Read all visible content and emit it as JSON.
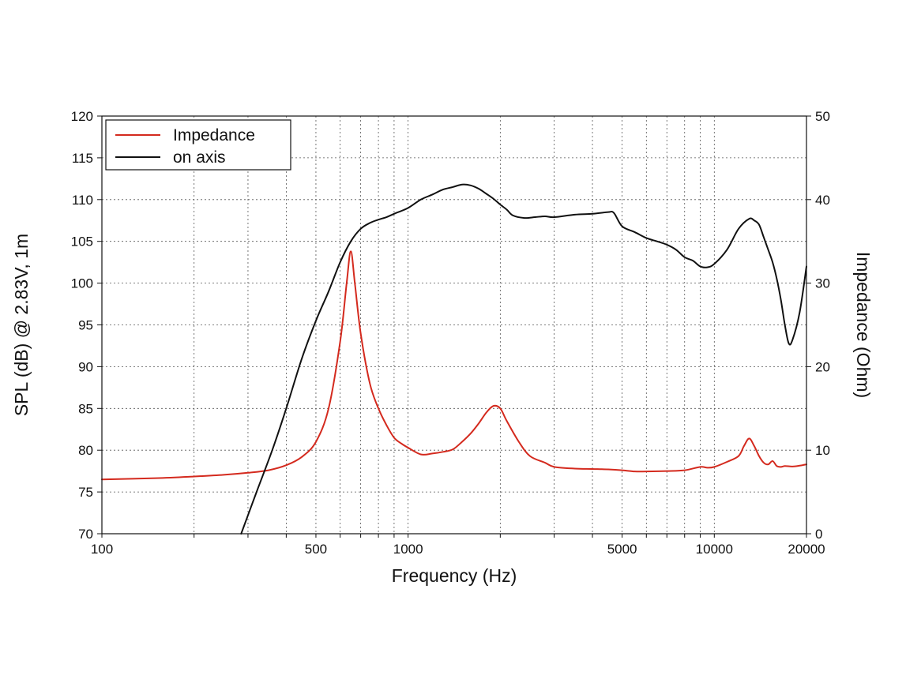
{
  "chart_data": {
    "type": "line",
    "xscale": "log",
    "xlabel": "Frequency (Hz)",
    "ylabel_left": "SPL (dB) @ 2.83V, 1m",
    "ylabel_right": "Impedance (Ohm)",
    "xlim": [
      100,
      20000
    ],
    "ylim_left": [
      70,
      120
    ],
    "ylim_right": [
      0,
      50
    ],
    "grid": true,
    "legend_position": "top-left",
    "x_ticks": [
      100,
      500,
      1000,
      5000,
      10000,
      20000
    ],
    "x_tick_labels": [
      "100",
      "500",
      "1000",
      "5000",
      "10000",
      "20000"
    ],
    "y_left_ticks": [
      70,
      75,
      80,
      85,
      90,
      95,
      100,
      105,
      110,
      115,
      120
    ],
    "y_left_tick_labels": [
      "70",
      "75",
      "80",
      "85",
      "90",
      "95",
      "100",
      "105",
      "110",
      "115",
      "120"
    ],
    "y_right_ticks": [
      0,
      10,
      20,
      30,
      40,
      50
    ],
    "y_right_tick_labels": [
      "0",
      "10",
      "20",
      "30",
      "40",
      "50"
    ],
    "series": [
      {
        "name": "Impedance",
        "color": "#d42a1e",
        "axis": "right",
        "x": [
          100,
          150,
          200,
          250,
          300,
          350,
          400,
          450,
          500,
          550,
          600,
          630,
          650,
          670,
          700,
          750,
          800,
          850,
          900,
          950,
          1000,
          1100,
          1200,
          1300,
          1400,
          1500,
          1600,
          1700,
          1800,
          1900,
          2000,
          2100,
          2300,
          2500,
          2800,
          3000,
          3500,
          4000,
          4500,
          5000,
          5500,
          6000,
          7000,
          8000,
          9000,
          9500,
          10000,
          11000,
          12000,
          12500,
          13000,
          13500,
          14000,
          14500,
          15000,
          15500,
          16000,
          16500,
          17000,
          18000,
          19000,
          20000
        ],
        "y": [
          6.5,
          6.65,
          6.85,
          7.05,
          7.3,
          7.6,
          8.2,
          9.2,
          11.0,
          15.0,
          23.0,
          30.0,
          33.8,
          30.0,
          24.0,
          18.0,
          15.0,
          13.0,
          11.5,
          10.8,
          10.3,
          9.5,
          9.6,
          9.8,
          10.1,
          11.0,
          12.0,
          13.2,
          14.5,
          15.3,
          15.0,
          13.5,
          11.0,
          9.3,
          8.5,
          8.0,
          7.8,
          7.75,
          7.7,
          7.6,
          7.45,
          7.45,
          7.5,
          7.6,
          8.0,
          7.9,
          8.0,
          8.6,
          9.3,
          10.5,
          11.4,
          10.5,
          9.3,
          8.5,
          8.3,
          8.7,
          8.1,
          8.0,
          8.1,
          8.05,
          8.15,
          8.3
        ]
      },
      {
        "name": "on axis",
        "color": "#111111",
        "axis": "left",
        "x": [
          285,
          320,
          360,
          400,
          450,
          500,
          550,
          600,
          650,
          700,
          750,
          800,
          850,
          900,
          1000,
          1100,
          1200,
          1300,
          1400,
          1500,
          1600,
          1700,
          1800,
          1900,
          2000,
          2100,
          2200,
          2400,
          2600,
          2800,
          3000,
          3500,
          4000,
          4500,
          4700,
          5000,
          5500,
          6000,
          6500,
          7000,
          7500,
          8000,
          8500,
          9000,
          9500,
          10000,
          11000,
          12000,
          13000,
          13500,
          14000,
          14500,
          15000,
          15500,
          16000,
          16500,
          17000,
          17500,
          18000,
          19000,
          20000
        ],
        "y": [
          70.0,
          75.0,
          80.0,
          85.0,
          91.0,
          95.5,
          99.0,
          102.5,
          105.0,
          106.5,
          107.2,
          107.6,
          107.9,
          108.3,
          109.0,
          110.0,
          110.6,
          111.2,
          111.5,
          111.8,
          111.7,
          111.3,
          110.7,
          110.1,
          109.4,
          108.8,
          108.1,
          107.8,
          107.9,
          108.0,
          107.9,
          108.2,
          108.3,
          108.5,
          108.4,
          106.8,
          106.1,
          105.4,
          105.0,
          104.6,
          104.0,
          103.1,
          102.7,
          102.0,
          101.9,
          102.3,
          104.0,
          106.5,
          107.7,
          107.5,
          107.0,
          105.5,
          104.0,
          102.5,
          100.5,
          98.0,
          95.0,
          92.8,
          93.2,
          96.5,
          102.0
        ]
      }
    ]
  }
}
